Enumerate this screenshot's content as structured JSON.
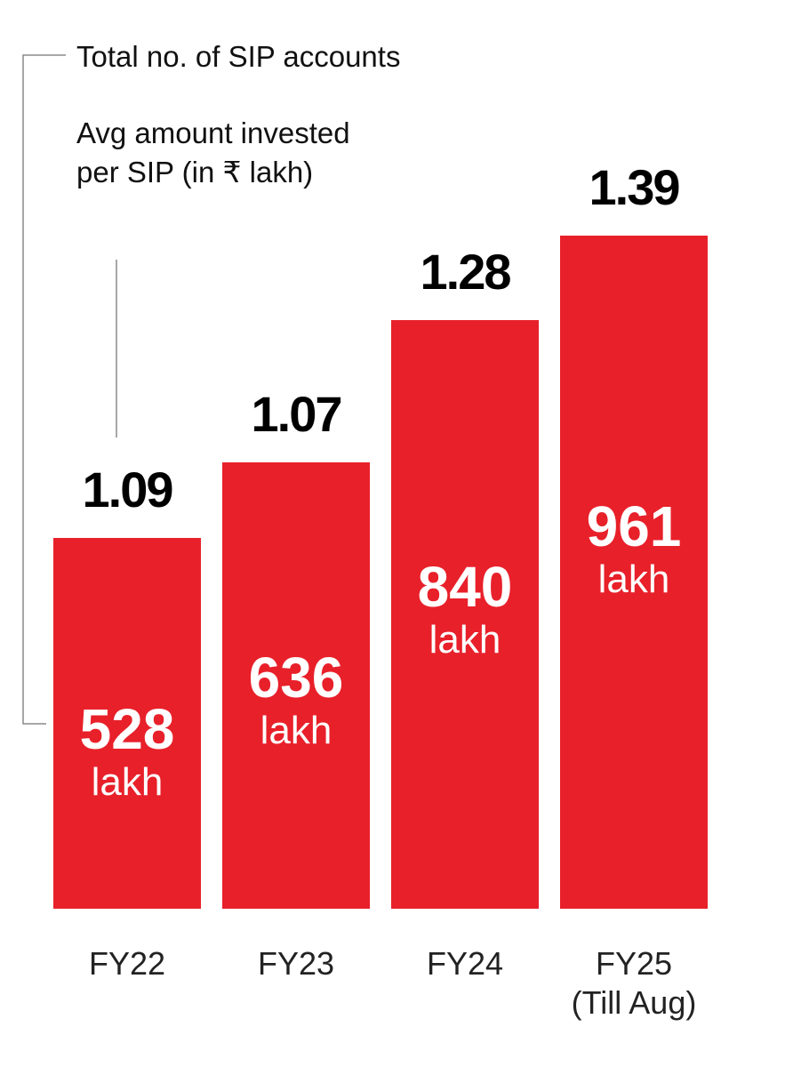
{
  "legend": {
    "accounts": "Total no. of SIP accounts",
    "avg": "Avg amount invested per SIP (in ₹ lakh)"
  },
  "colors": {
    "bar": "#e8202a",
    "line": "#8a8a8a"
  },
  "chart_data": {
    "type": "bar",
    "categories": [
      "FY22",
      "FY23",
      "FY24",
      "FY25"
    ],
    "category_notes": [
      "",
      "",
      "",
      "(Till Aug)"
    ],
    "series": [
      {
        "name": "Total no. of SIP accounts",
        "values": [
          528,
          636,
          840,
          961
        ],
        "unit": "lakh"
      },
      {
        "name": "Avg amount invested per SIP (in ₹ lakh)",
        "values": [
          1.09,
          1.07,
          1.28,
          1.39
        ]
      }
    ],
    "bar_height_series": 1,
    "value_labels": [
      "1.09",
      "1.07",
      "1.28",
      "1.39"
    ],
    "account_labels": [
      "528",
      "636",
      "840",
      "961"
    ],
    "unit_label": "lakh"
  }
}
